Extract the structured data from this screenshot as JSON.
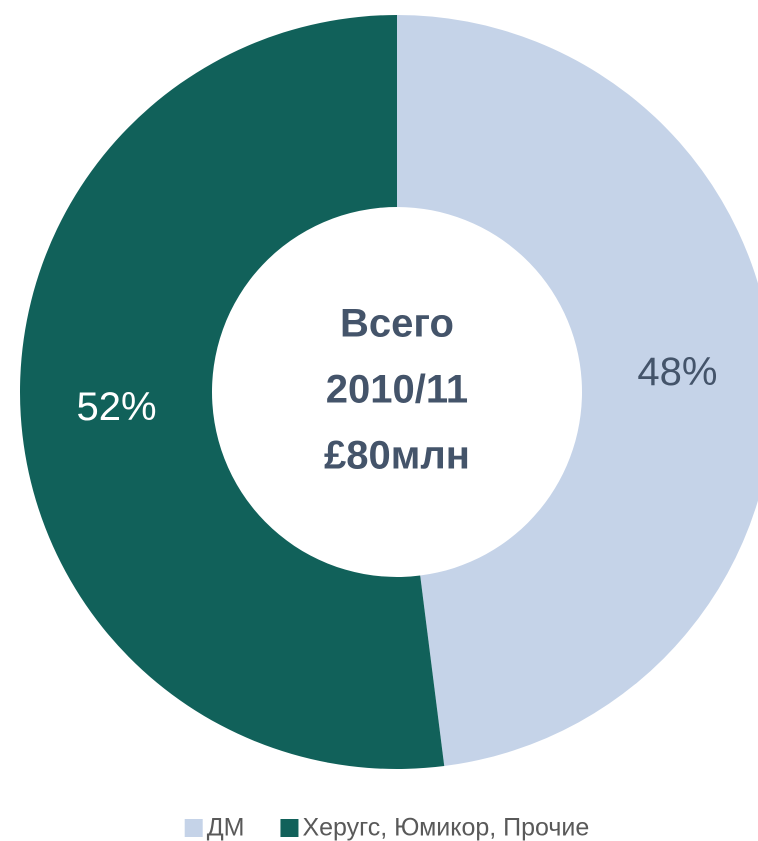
{
  "chart_data": {
    "type": "donut",
    "categories": [
      "ДМ",
      "Херугс, Юмикор, Прочие"
    ],
    "values": [
      48,
      52
    ],
    "value_labels": [
      "48%",
      "52%"
    ],
    "colors": [
      "#c5d3e8",
      "#11615a"
    ],
    "center_text": [
      "Всего",
      "2010/11",
      "£80млн"
    ],
    "legend": "bottom"
  }
}
